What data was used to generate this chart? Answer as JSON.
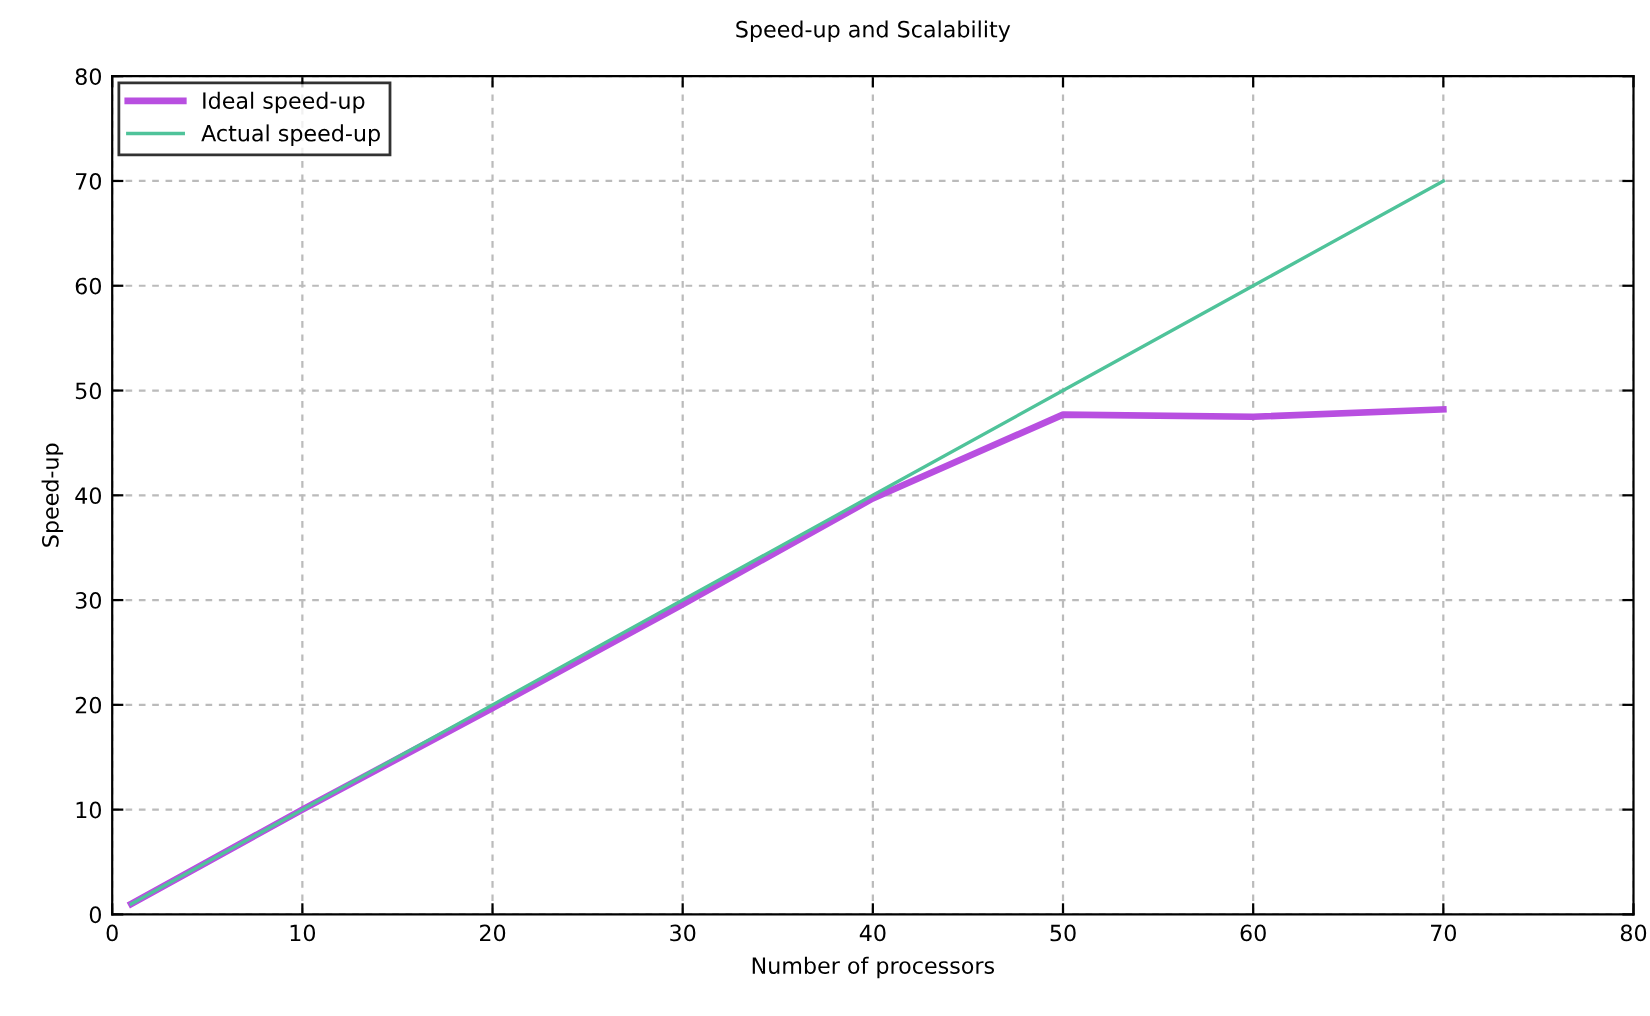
{
  "chart_data": {
    "type": "line",
    "title": "Speed-up and Scalability",
    "xlabel": "Number of processors",
    "ylabel": "Speed-up",
    "x": [
      1,
      10,
      20,
      30,
      40,
      50,
      60,
      70
    ],
    "series": [
      {
        "name": "Ideal speed-up",
        "color": "#b84fe0",
        "values": [
          1,
          10,
          19.7,
          29.6,
          39.7,
          47.7,
          47.5,
          48.2
        ]
      },
      {
        "name": "Actual speed-up",
        "color": "#4fc39a",
        "values": [
          1,
          10,
          20,
          30,
          40,
          50,
          60,
          70
        ]
      }
    ],
    "xlim": [
      0,
      80
    ],
    "ylim": [
      0,
      80
    ],
    "xticks": [
      0,
      10,
      20,
      30,
      40,
      50,
      60,
      70,
      80
    ],
    "yticks": [
      0,
      10,
      20,
      30,
      40,
      50,
      60,
      70,
      80
    ],
    "grid": true,
    "legend": "top left",
    "marker": "none",
    "line_style": "solid"
  }
}
